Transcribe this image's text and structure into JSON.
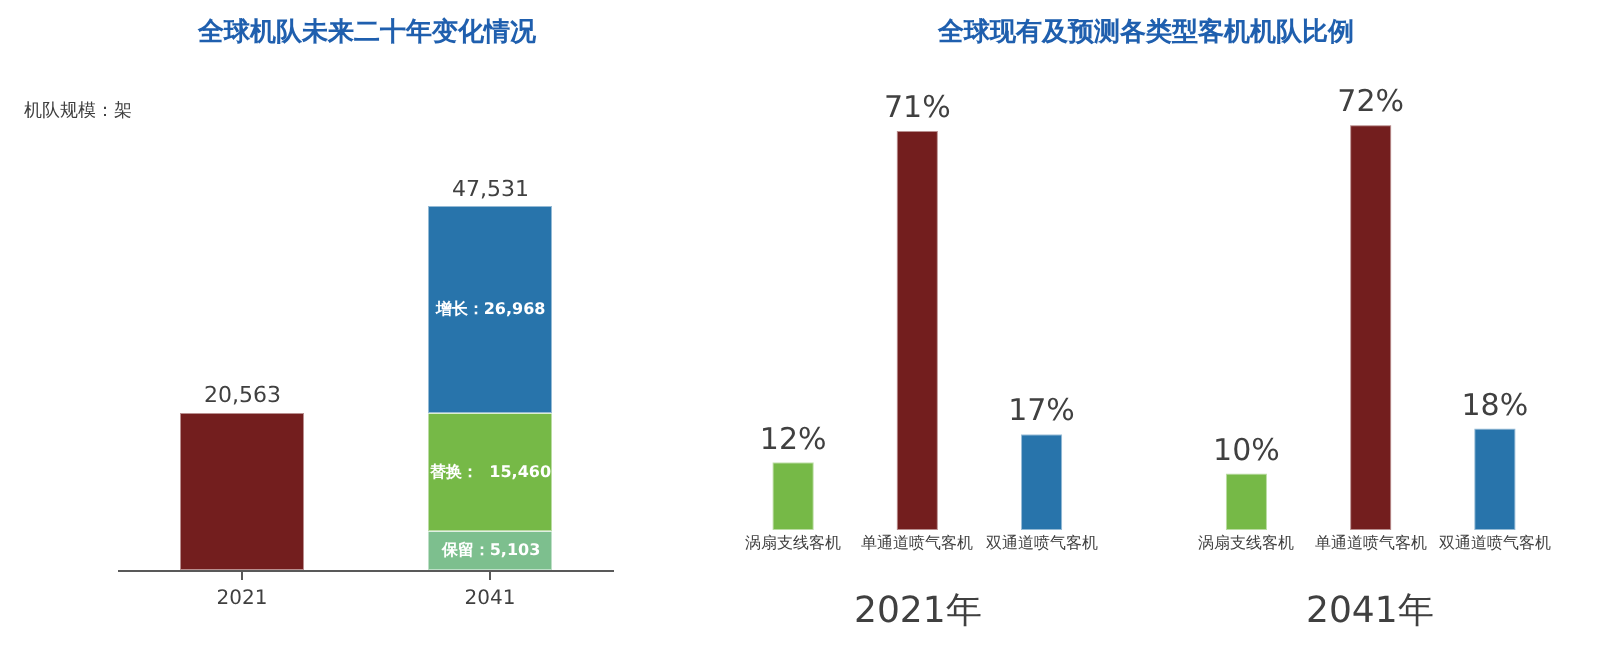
{
  "chart_data": [
    {
      "type": "bar",
      "title": "全球机队未来二十年变化情况",
      "ylabel": "机队规模：架",
      "categories": [
        "2021",
        "2041"
      ],
      "stacked": true,
      "series": [
        {
          "color": "#731e1e",
          "values": [
            20563,
            null
          ],
          "value_labels": [
            null,
            null
          ]
        },
        {
          "color": "#7dbf8e",
          "values": [
            null,
            5103
          ],
          "value_labels": [
            null,
            "保留：5,103"
          ]
        },
        {
          "color": "#76b947",
          "values": [
            null,
            15460
          ],
          "value_labels": [
            null,
            "替换：  15,460"
          ]
        },
        {
          "color": "#2874ab",
          "values": [
            null,
            26968
          ],
          "value_labels": [
            null,
            "增长：26,968"
          ]
        }
      ],
      "totals": [
        "20,563",
        "47,531"
      ]
    },
    {
      "type": "bar",
      "title": "全球现有及预测各类型客机机队比例",
      "categories": [
        "涡扇支线客机",
        "单通道喷气客机",
        "双通道喷气客机",
        "涡扇支线客机",
        "单通道喷气客机",
        "双通道喷气客机"
      ],
      "values": [
        12,
        71,
        17,
        10,
        72,
        18
      ],
      "colors": [
        "#76b947",
        "#731e1e",
        "#2874ab",
        "#76b947",
        "#731e1e",
        "#2874ab"
      ],
      "value_labels": [
        "12%",
        "71%",
        "17%",
        "10%",
        "72%",
        "18%"
      ],
      "annotations": [
        "2021年",
        "2041年"
      ]
    }
  ]
}
